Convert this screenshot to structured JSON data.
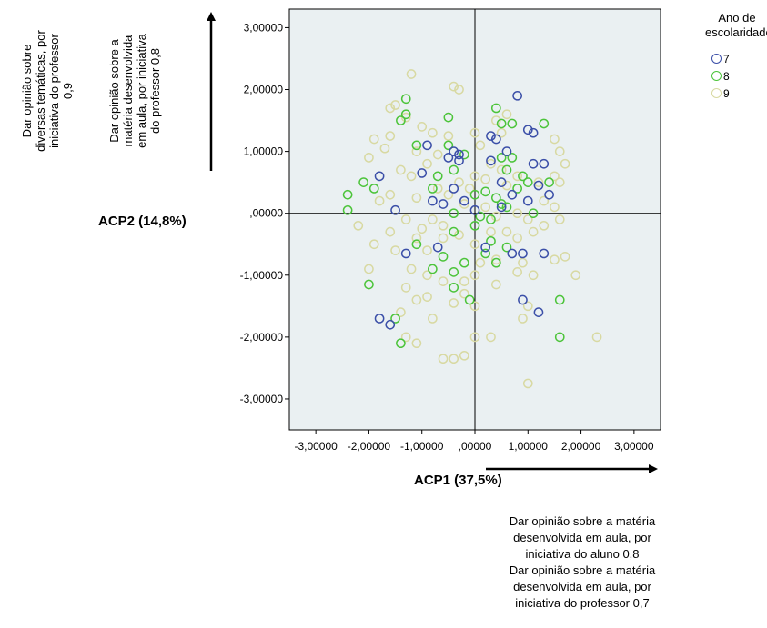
{
  "chart_data": {
    "type": "scatter",
    "xlabel": "ACP1 (37,5%)",
    "ylabel": "ACP2 (14,8%)",
    "xlim": [
      -3.5,
      3.5
    ],
    "ylim": [
      -3.5,
      3.3
    ],
    "x_ticks": [
      -3,
      -2,
      -1,
      0,
      1,
      2,
      3
    ],
    "x_tick_labels": [
      "-3,00000",
      "-2,00000",
      "-1,00000",
      ",00000",
      "1,00000",
      "2,00000",
      "3,00000"
    ],
    "y_ticks": [
      3,
      2,
      1,
      0,
      -1,
      -2,
      -3
    ],
    "y_tick_labels": [
      "3,00000",
      "2,00000",
      "1,00000",
      ",00000",
      "-1,00000",
      "-2,00000",
      "-3,00000"
    ],
    "reference_lines": {
      "x": 0,
      "y": 0
    },
    "plot_background": "#eaf0f2",
    "legend": {
      "title": "Ano de escolaridade",
      "title_lines": [
        "Ano de",
        "escolaridade"
      ],
      "position": "right"
    },
    "series": [
      {
        "name": "7",
        "color": "#3b4fa8",
        "points": [
          [
            0.8,
            1.9
          ],
          [
            0.3,
            1.25
          ],
          [
            0.4,
            1.2
          ],
          [
            1.0,
            1.35
          ],
          [
            1.1,
            1.3
          ],
          [
            -0.9,
            1.1
          ],
          [
            -0.4,
            1.0
          ],
          [
            -0.5,
            0.9
          ],
          [
            -0.3,
            0.85
          ],
          [
            0.6,
            1.0
          ],
          [
            0.3,
            0.85
          ],
          [
            1.3,
            0.8
          ],
          [
            1.1,
            0.8
          ],
          [
            -1.8,
            0.6
          ],
          [
            -1.0,
            0.65
          ],
          [
            -0.4,
            0.4
          ],
          [
            -0.8,
            0.2
          ],
          [
            0.7,
            0.3
          ],
          [
            1.2,
            0.45
          ],
          [
            1.4,
            0.3
          ],
          [
            -1.5,
            0.05
          ],
          [
            -0.2,
            0.2
          ],
          [
            0.0,
            0.05
          ],
          [
            0.5,
            0.1
          ],
          [
            1.0,
            0.2
          ],
          [
            -0.6,
            0.15
          ],
          [
            0.2,
            -0.55
          ],
          [
            -1.3,
            -0.65
          ],
          [
            -0.7,
            -0.55
          ],
          [
            0.7,
            -0.65
          ],
          [
            0.9,
            -0.65
          ],
          [
            1.3,
            -0.65
          ],
          [
            0.9,
            -1.4
          ],
          [
            1.2,
            -1.6
          ],
          [
            -1.8,
            -1.7
          ],
          [
            -1.6,
            -1.8
          ],
          [
            -0.3,
            0.95
          ],
          [
            0.5,
            0.5
          ]
        ]
      },
      {
        "name": "8",
        "color": "#4cc43a",
        "points": [
          [
            -1.3,
            1.85
          ],
          [
            -1.4,
            1.5
          ],
          [
            -1.3,
            1.6
          ],
          [
            -0.5,
            1.55
          ],
          [
            0.4,
            1.7
          ],
          [
            0.5,
            1.45
          ],
          [
            0.7,
            1.45
          ],
          [
            1.3,
            1.45
          ],
          [
            -1.1,
            1.1
          ],
          [
            -0.5,
            1.1
          ],
          [
            -0.2,
            0.95
          ],
          [
            0.5,
            0.9
          ],
          [
            0.6,
            0.7
          ],
          [
            -0.7,
            0.6
          ],
          [
            -0.4,
            0.7
          ],
          [
            0.7,
            0.9
          ],
          [
            0.9,
            0.6
          ],
          [
            1.4,
            0.5
          ],
          [
            -2.1,
            0.5
          ],
          [
            -1.9,
            0.4
          ],
          [
            -2.4,
            0.3
          ],
          [
            -0.8,
            0.4
          ],
          [
            0.0,
            0.3
          ],
          [
            0.2,
            0.35
          ],
          [
            0.4,
            0.25
          ],
          [
            0.5,
            0.15
          ],
          [
            0.6,
            0.1
          ],
          [
            -2.4,
            0.05
          ],
          [
            -0.4,
            0.0
          ],
          [
            0.1,
            -0.05
          ],
          [
            0.3,
            -0.1
          ],
          [
            1.0,
            0.5
          ],
          [
            1.1,
            0.0
          ],
          [
            -1.1,
            -0.5
          ],
          [
            -0.4,
            -0.3
          ],
          [
            0.0,
            -0.2
          ],
          [
            0.3,
            -0.45
          ],
          [
            0.6,
            -0.55
          ],
          [
            -0.2,
            -0.8
          ],
          [
            0.2,
            -0.65
          ],
          [
            0.4,
            -0.8
          ],
          [
            -0.8,
            -0.9
          ],
          [
            -0.4,
            -0.95
          ],
          [
            -0.4,
            -1.2
          ],
          [
            -0.1,
            -1.4
          ],
          [
            -2.0,
            -1.15
          ],
          [
            -1.5,
            -1.7
          ],
          [
            -1.4,
            -2.1
          ],
          [
            1.6,
            -1.4
          ],
          [
            1.6,
            -2.0
          ],
          [
            -0.6,
            -0.7
          ],
          [
            0.8,
            0.4
          ]
        ]
      },
      {
        "name": "9",
        "color": "#d8d9a2",
        "points": [
          [
            -1.2,
            2.25
          ],
          [
            -0.3,
            2.0
          ],
          [
            -0.4,
            2.05
          ],
          [
            -1.5,
            1.75
          ],
          [
            -1.6,
            1.7
          ],
          [
            -1.3,
            1.55
          ],
          [
            -1.0,
            1.4
          ],
          [
            -0.8,
            1.3
          ],
          [
            -0.5,
            1.25
          ],
          [
            -1.6,
            1.25
          ],
          [
            -1.9,
            1.2
          ],
          [
            -1.7,
            1.05
          ],
          [
            -1.1,
            1.0
          ],
          [
            -0.7,
            0.95
          ],
          [
            0.0,
            1.3
          ],
          [
            0.1,
            1.1
          ],
          [
            0.4,
            1.5
          ],
          [
            0.5,
            1.3
          ],
          [
            0.6,
            1.6
          ],
          [
            1.5,
            1.2
          ],
          [
            1.6,
            1.0
          ],
          [
            1.7,
            0.8
          ],
          [
            1.5,
            0.6
          ],
          [
            -2.0,
            0.9
          ],
          [
            -1.4,
            0.7
          ],
          [
            -1.2,
            0.6
          ],
          [
            -0.9,
            0.8
          ],
          [
            -0.7,
            0.4
          ],
          [
            -0.3,
            0.5
          ],
          [
            0.0,
            0.6
          ],
          [
            0.2,
            0.55
          ],
          [
            0.3,
            0.8
          ],
          [
            0.6,
            0.45
          ],
          [
            0.8,
            0.6
          ],
          [
            1.2,
            0.5
          ],
          [
            1.6,
            0.5
          ],
          [
            -1.8,
            0.2
          ],
          [
            -1.6,
            0.3
          ],
          [
            -1.1,
            0.25
          ],
          [
            -0.5,
            0.3
          ],
          [
            -0.1,
            0.4
          ],
          [
            0.2,
            0.1
          ],
          [
            0.4,
            -0.05
          ],
          [
            0.8,
            0.0
          ],
          [
            1.3,
            0.2
          ],
          [
            1.5,
            0.1
          ],
          [
            -2.2,
            -0.2
          ],
          [
            -1.6,
            -0.3
          ],
          [
            -1.3,
            -0.1
          ],
          [
            -1.0,
            -0.25
          ],
          [
            -0.8,
            -0.1
          ],
          [
            -0.6,
            -0.2
          ],
          [
            -0.3,
            -0.35
          ],
          [
            0.0,
            -0.5
          ],
          [
            0.3,
            -0.3
          ],
          [
            0.6,
            -0.3
          ],
          [
            0.8,
            -0.4
          ],
          [
            1.1,
            -0.3
          ],
          [
            1.3,
            -0.2
          ],
          [
            1.6,
            -0.1
          ],
          [
            -1.9,
            -0.5
          ],
          [
            -1.5,
            -0.6
          ],
          [
            -0.9,
            -0.6
          ],
          [
            -0.6,
            -0.4
          ],
          [
            0.1,
            -0.8
          ],
          [
            0.4,
            -0.75
          ],
          [
            0.9,
            -0.8
          ],
          [
            1.5,
            -0.75
          ],
          [
            1.7,
            -0.7
          ],
          [
            -2.0,
            -0.9
          ],
          [
            -1.2,
            -0.9
          ],
          [
            -0.9,
            -1.0
          ],
          [
            -0.6,
            -1.1
          ],
          [
            -0.2,
            -1.1
          ],
          [
            0.0,
            -1.0
          ],
          [
            0.4,
            -1.15
          ],
          [
            0.8,
            -0.95
          ],
          [
            1.1,
            -1.0
          ],
          [
            -1.3,
            -1.2
          ],
          [
            -1.1,
            -1.4
          ],
          [
            -0.9,
            -1.35
          ],
          [
            -0.4,
            -1.45
          ],
          [
            -0.2,
            -1.3
          ],
          [
            0.0,
            -1.5
          ],
          [
            0.9,
            -1.7
          ],
          [
            1.0,
            -1.5
          ],
          [
            -1.4,
            -1.6
          ],
          [
            -0.8,
            -1.7
          ],
          [
            -1.3,
            -2.0
          ],
          [
            -1.1,
            -2.1
          ],
          [
            -0.6,
            -2.35
          ],
          [
            -0.4,
            -2.35
          ],
          [
            -0.2,
            -2.3
          ],
          [
            0.0,
            -2.0
          ],
          [
            0.3,
            -2.0
          ],
          [
            1.0,
            -2.75
          ],
          [
            2.3,
            -2.0
          ],
          [
            1.9,
            -1.0
          ],
          [
            -1.1,
            -0.4
          ],
          [
            0.5,
            0.7
          ],
          [
            -0.2,
            0.15
          ],
          [
            1.0,
            -0.1
          ]
        ]
      }
    ]
  },
  "annotations": {
    "y_description_1": [
      "Dar opinião sobre",
      "diversas temáticas, por",
      "iniciativa do professor",
      "0,9"
    ],
    "y_description_2": [
      "Dar opinião sobre a",
      "matéria desenvolvida",
      "em aula, por iniciativa",
      "do professor 0,8"
    ],
    "x_description": [
      "Dar opinião sobre a matéria",
      "desenvolvida em aula, por",
      "iniciativa do aluno 0,8",
      "Dar opinião sobre a matéria",
      "desenvolvida em aula, por",
      "iniciativa do professor 0,7"
    ]
  }
}
